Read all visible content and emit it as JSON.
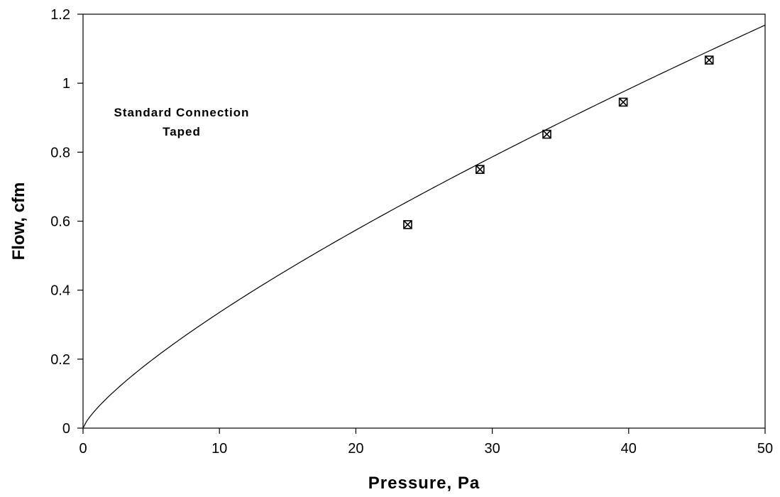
{
  "chart_data": {
    "type": "scatter",
    "xlabel": "Pressure, Pa",
    "ylabel": "Flow, cfm",
    "xlim": [
      0,
      50
    ],
    "ylim": [
      0,
      1.2
    ],
    "x_ticks": [
      "0",
      "10",
      "20",
      "30",
      "40",
      "50"
    ],
    "y_ticks": [
      "0",
      "0.2",
      "0.4",
      "0.6",
      "0.8",
      "1",
      "1.2"
    ],
    "grid": false,
    "annotation": [
      "Standard Connection",
      "Taped"
    ],
    "series": [
      {
        "marker": "box-x",
        "points": [
          {
            "x": 23.8,
            "y": 0.59
          },
          {
            "x": 29.1,
            "y": 0.75
          },
          {
            "x": 34.0,
            "y": 0.852
          },
          {
            "x": 39.6,
            "y": 0.945
          },
          {
            "x": 45.9,
            "y": 1.067
          }
        ]
      }
    ],
    "fit_curve": {
      "form": "power",
      "coefficient": 0.05624,
      "exponent": 0.7755
    }
  }
}
